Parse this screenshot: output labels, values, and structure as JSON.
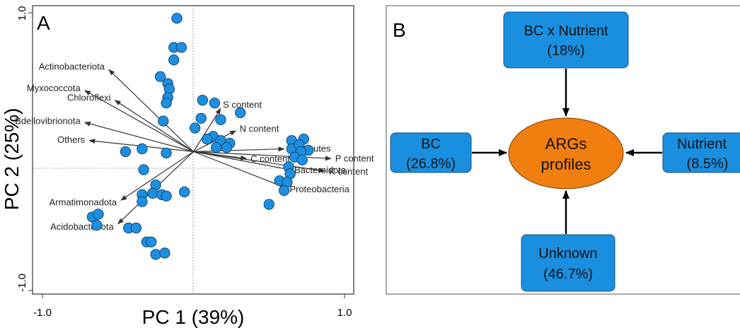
{
  "panel_a": {
    "letter": "A",
    "xlabel": "PC 1 (39%)",
    "ylabel": "PC 2 (25%)",
    "x_ticks": [
      "-1.0",
      "1.0"
    ],
    "y_ticks": [
      "1.0",
      "-1.0"
    ]
  },
  "panel_b": {
    "letter": "B",
    "center": {
      "line1": "ARGs",
      "line2": "profiles"
    },
    "top": {
      "line1": "BC x Nutrient",
      "line2": "(18%)"
    },
    "left": {
      "line1": "BC",
      "line2": "(26.8%)"
    },
    "right": {
      "line1": "Nutrient",
      "line2": "(8.5%)"
    },
    "bottom": {
      "line1": "Unknown",
      "line2": "(46.7%)"
    },
    "colors": {
      "box": "#1a8fe0",
      "box_border": "#1b4f7a",
      "center": "#f07f0f",
      "arrow": "#000000"
    }
  },
  "chart_data": {
    "type": "scatter",
    "xlabel": "PC 1 (39%)",
    "ylabel": "PC 2 (25%)",
    "xlim": [
      -1.0,
      1.0
    ],
    "ylim": [
      -1.0,
      1.0
    ],
    "point_color": "#1e8fe0",
    "vectors": [
      {
        "name": "Actinobacteriota",
        "x": -0.56,
        "y": 0.59
      },
      {
        "name": "Myxococcota",
        "x": -0.72,
        "y": 0.44
      },
      {
        "name": "Chloroflexi",
        "x": -0.52,
        "y": 0.37
      },
      {
        "name": "Bdellovibrionota",
        "x": -0.72,
        "y": 0.21
      },
      {
        "name": "Others",
        "x": -0.69,
        "y": 0.08
      },
      {
        "name": "Armatimonadota",
        "x": -0.48,
        "y": -0.35
      },
      {
        "name": "Acidobacteriota",
        "x": -0.5,
        "y": -0.52
      },
      {
        "name": "S content",
        "x": 0.18,
        "y": 0.31
      },
      {
        "name": "N content",
        "x": 0.28,
        "y": 0.15
      },
      {
        "name": "Firmicutes",
        "x": 0.6,
        "y": 0.02
      },
      {
        "name": "P content",
        "x": 0.91,
        "y": -0.05
      },
      {
        "name": "K content",
        "x": 0.87,
        "y": -0.14
      },
      {
        "name": "Bacteroidota",
        "x": 0.64,
        "y": -0.13
      },
      {
        "name": "Proteobacteria",
        "x": 0.61,
        "y": -0.26
      },
      {
        "name": "C content",
        "x": 0.35,
        "y": -0.05
      }
    ],
    "points": [
      [
        -0.11,
        0.96
      ],
      [
        -0.13,
        0.75
      ],
      [
        -0.08,
        0.75
      ],
      [
        -0.13,
        0.66
      ],
      [
        -0.22,
        0.54
      ],
      [
        -0.17,
        0.49
      ],
      [
        -0.16,
        0.45
      ],
      [
        -0.17,
        0.39
      ],
      [
        -0.18,
        0.35
      ],
      [
        -0.2,
        0.22
      ],
      [
        0.06,
        0.37
      ],
      [
        0.14,
        0.35
      ],
      [
        0.05,
        0.24
      ],
      [
        0.18,
        0.23
      ],
      [
        0.31,
        0.28
      ],
      [
        0.01,
        0.17
      ],
      [
        0.13,
        0.11
      ],
      [
        0.09,
        0.09
      ],
      [
        0.18,
        0.08
      ],
      [
        0.24,
        0.06
      ],
      [
        0.15,
        0.03
      ],
      [
        0.22,
        0.03
      ],
      [
        -0.45,
        0.0
      ],
      [
        -0.34,
        0.02
      ],
      [
        -0.18,
        -0.01
      ],
      [
        -0.33,
        -0.13
      ],
      [
        0.65,
        0.08
      ],
      [
        0.73,
        0.09
      ],
      [
        0.65,
        0.02
      ],
      [
        0.7,
        0.05
      ],
      [
        0.76,
        0.01
      ],
      [
        0.71,
        0.0
      ],
      [
        0.67,
        -0.04
      ],
      [
        0.72,
        -0.06
      ],
      [
        0.63,
        -0.11
      ],
      [
        0.64,
        -0.16
      ],
      [
        0.57,
        -0.21
      ],
      [
        0.62,
        -0.22
      ],
      [
        0.6,
        -0.28
      ],
      [
        0.5,
        -0.38
      ],
      [
        -0.25,
        -0.24
      ],
      [
        -0.27,
        -0.3
      ],
      [
        -0.34,
        -0.31
      ],
      [
        -0.21,
        -0.31
      ],
      [
        -0.18,
        -0.32
      ],
      [
        -0.06,
        -0.29
      ],
      [
        -0.34,
        -0.36
      ],
      [
        -0.67,
        -0.47
      ],
      [
        -0.63,
        -0.45
      ],
      [
        -0.64,
        -0.53
      ],
      [
        -0.43,
        -0.55
      ],
      [
        -0.38,
        -0.55
      ],
      [
        -0.31,
        -0.65
      ],
      [
        -0.28,
        -0.65
      ],
      [
        -0.25,
        -0.74
      ],
      [
        -0.19,
        -0.73
      ]
    ]
  }
}
